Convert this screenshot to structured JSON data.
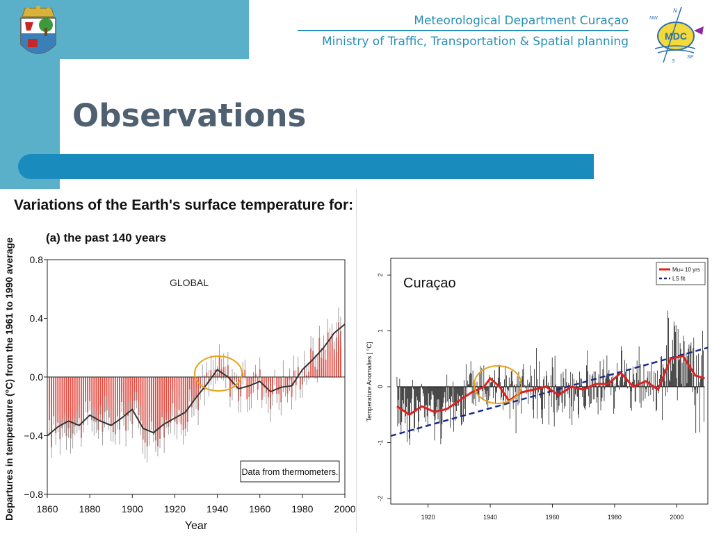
{
  "header": {
    "department": "Meteorological Department Curaçao",
    "ministry": "Ministry of Traffic, Transportation & Spatial planning",
    "logo_text": "MDC",
    "compass": [
      "N",
      "NW",
      "S",
      "SE"
    ]
  },
  "slide": {
    "title": "Observations"
  },
  "colors": {
    "band": "#5bb0c9",
    "bar": "#1a8bbd",
    "title": "#4f6071",
    "accent": "#2a8fb6"
  },
  "chart_data": [
    {
      "type": "bar",
      "title": "Variations of the Earth's surface temperature for:",
      "subtitle": "(a) the past 140 years",
      "annotation": "GLOBAL",
      "note": "Data from thermometers.",
      "xlabel": "Year",
      "ylabel": "Departures in temperature (°C) from the 1961 to 1990 average",
      "xlim": [
        1860,
        2000
      ],
      "ylim": [
        -0.8,
        0.8
      ],
      "xticks": [
        "1860",
        "1880",
        "1900",
        "1920",
        "1940",
        "1960",
        "1980",
        "2000"
      ],
      "yticks": [
        "0.8",
        "0.4",
        "0.0",
        "−0.4",
        "−0.8"
      ],
      "smooth": {
        "x": [
          1860,
          1865,
          1870,
          1875,
          1880,
          1885,
          1890,
          1895,
          1900,
          1905,
          1910,
          1915,
          1920,
          1925,
          1930,
          1935,
          1940,
          1945,
          1950,
          1955,
          1960,
          1965,
          1970,
          1975,
          1980,
          1985,
          1990,
          1995,
          2000
        ],
        "y": [
          -0.4,
          -0.34,
          -0.3,
          -0.33,
          -0.26,
          -0.3,
          -0.33,
          -0.28,
          -0.22,
          -0.35,
          -0.38,
          -0.32,
          -0.28,
          -0.24,
          -0.14,
          -0.05,
          0.05,
          0.0,
          -0.08,
          -0.06,
          -0.03,
          -0.1,
          -0.07,
          -0.06,
          0.05,
          0.12,
          0.2,
          0.3,
          0.36
        ]
      }
    },
    {
      "type": "line",
      "annotation": "Curaçao",
      "ylabel": "Temperature Anomalies [ °C]",
      "xlim": [
        1908,
        2010
      ],
      "ylim": [
        -2.1,
        2.3
      ],
      "xticks": [
        "1920",
        "1940",
        "1960",
        "1980",
        "2000"
      ],
      "yticks": [
        "2",
        "1",
        "0",
        "-1",
        "-2"
      ],
      "legend": [
        "Mu= 10 yrs",
        "LS fit"
      ],
      "legend_position": "top-right",
      "smooth": {
        "x": [
          1910,
          1914,
          1918,
          1922,
          1926,
          1930,
          1934,
          1938,
          1940,
          1943,
          1946,
          1950,
          1954,
          1958,
          1962,
          1966,
          1970,
          1974,
          1978,
          1982,
          1986,
          1990,
          1994,
          1998,
          2002,
          2006,
          2009
        ],
        "y": [
          -0.35,
          -0.5,
          -0.35,
          -0.45,
          -0.4,
          -0.25,
          -0.1,
          0.0,
          0.15,
          0.0,
          -0.25,
          -0.1,
          -0.05,
          0.0,
          -0.15,
          0.0,
          -0.05,
          0.05,
          0.05,
          0.25,
          0.0,
          0.1,
          -0.05,
          0.5,
          0.55,
          0.2,
          0.15
        ]
      },
      "trend": {
        "x": [
          1908,
          2010
        ],
        "y": [
          -0.88,
          0.7
        ]
      }
    }
  ]
}
